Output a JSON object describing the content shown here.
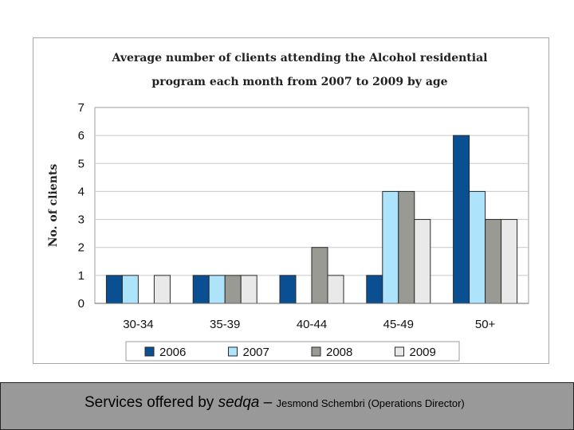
{
  "chart_data": {
    "type": "bar",
    "title_lines": [
      "Average number of clients attending the Alcohol residential",
      "program each month from 2007 to 2009 by age"
    ],
    "xlabel": "",
    "ylabel": "No. of clients",
    "ylim": [
      0,
      7
    ],
    "yticks": [
      0,
      1,
      2,
      3,
      4,
      5,
      6,
      7
    ],
    "grid": true,
    "legend_position": "bottom",
    "categories": [
      "30-34",
      "35-39",
      "40-44",
      "45-49",
      "50+"
    ],
    "series": [
      {
        "name": "2006",
        "color": "#0a4f91",
        "values": [
          1,
          1,
          1,
          1,
          6
        ]
      },
      {
        "name": "2007",
        "color": "#aee4fb",
        "values": [
          1,
          1,
          0,
          4,
          4
        ]
      },
      {
        "name": "2008",
        "color": "#9a9a94",
        "values": [
          0,
          1,
          2,
          4,
          3
        ]
      },
      {
        "name": "2009",
        "color": "#e9e9e9",
        "values": [
          1,
          1,
          1,
          3,
          3
        ]
      }
    ]
  },
  "footer": {
    "prefix": "Services offered by ",
    "brand": "sedqa",
    "separator": " – ",
    "detail": "Jesmond Schembri (Operations Director)"
  }
}
